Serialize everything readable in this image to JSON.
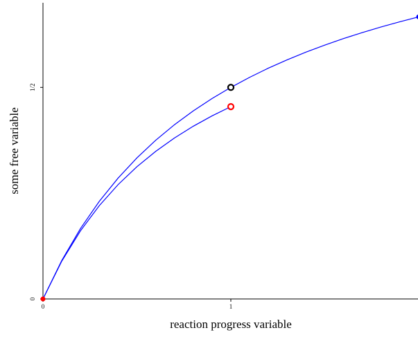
{
  "chart_data": {
    "type": "line",
    "xlabel": "reaction progress variable",
    "ylabel": "some free variable",
    "xlim": [
      0,
      2
    ],
    "ylim": [
      0,
      0.7
    ],
    "xticks": [
      0,
      1
    ],
    "yticks": [
      0,
      {
        "value": 0.5,
        "label": "1/2"
      }
    ],
    "series": [
      {
        "mode": "line",
        "color": "#0000ff",
        "x": [
          0,
          0.1,
          0.2,
          0.3,
          0.4,
          0.5,
          0.6,
          0.7,
          0.8,
          0.9,
          1,
          1.1,
          1.2,
          1.3,
          1.4,
          1.5,
          1.6,
          1.7,
          1.8,
          1.9,
          2
        ],
        "values": [
          0,
          0.0909,
          0.1667,
          0.2308,
          0.2857,
          0.3333,
          0.375,
          0.4118,
          0.4444,
          0.4737,
          0.5,
          0.5238,
          0.5455,
          0.5652,
          0.5833,
          0.6,
          0.6154,
          0.6296,
          0.6429,
          0.6552,
          0.6667
        ]
      },
      {
        "mode": "line",
        "color": "#0000ff",
        "x": [
          0,
          0.1,
          0.2,
          0.3,
          0.4,
          0.5,
          0.6,
          0.7,
          0.8,
          0.9,
          1
        ],
        "values": [
          0,
          0.0893,
          0.1613,
          0.2206,
          0.2703,
          0.3125,
          0.3488,
          0.3804,
          0.4082,
          0.4327,
          0.4545
        ]
      },
      {
        "mode": "dot",
        "color": "#ff0000",
        "x": [
          0
        ],
        "values": [
          0
        ]
      },
      {
        "mode": "ring",
        "color": "#000000",
        "x": [
          1
        ],
        "values": [
          0.5
        ]
      },
      {
        "mode": "ring",
        "color": "#ff0000",
        "x": [
          1
        ],
        "values": [
          0.4545
        ]
      },
      {
        "mode": "dot",
        "color": "#0000ff",
        "x": [
          2
        ],
        "values": [
          0.6667
        ]
      }
    ]
  }
}
